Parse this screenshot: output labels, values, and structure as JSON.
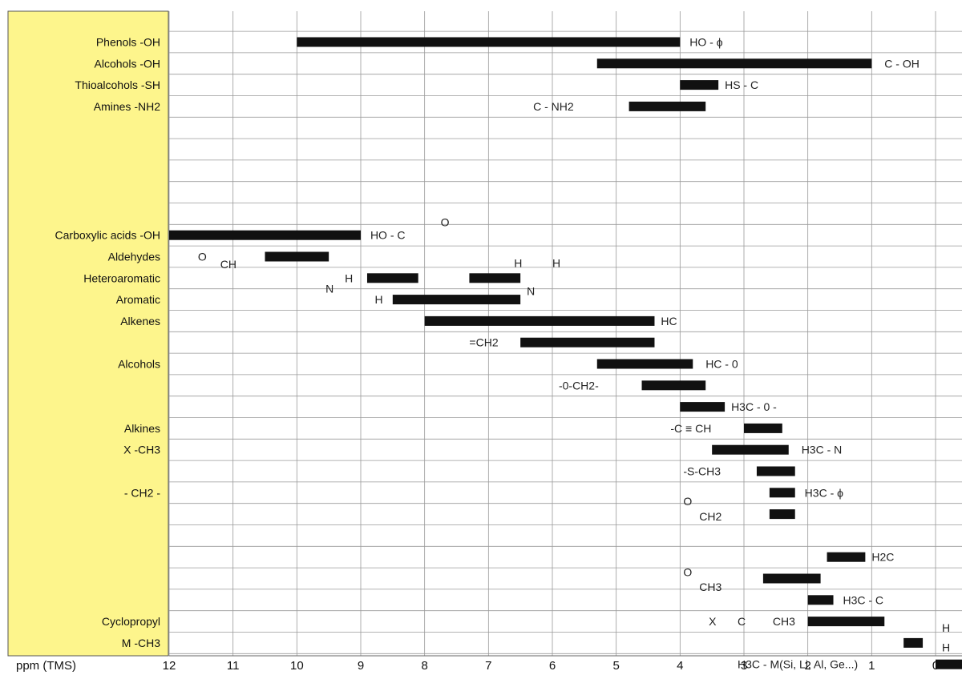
{
  "chart_data": {
    "type": "range-bar",
    "xlabel": "ppm (TMS)",
    "x_reversed": true,
    "xlim": [
      12,
      0
    ],
    "xticks": [
      12,
      11,
      10,
      9,
      8,
      7,
      6,
      5,
      4,
      3,
      2,
      1,
      0
    ],
    "grid": true,
    "colors": {
      "panel": "#fdf58c",
      "bar": "#111111",
      "grid": "#9a9a9a"
    },
    "labels": [
      {
        "row": 0,
        "text": "Phenols -OH"
      },
      {
        "row": 1,
        "text": "Alcohols -OH"
      },
      {
        "row": 2,
        "text": "Thioalcohols -SH"
      },
      {
        "row": 3,
        "text": "Amines -NH2"
      },
      {
        "row": 9,
        "text": "Carboxylic acids -OH"
      },
      {
        "row": 10,
        "text": "Aldehydes"
      },
      {
        "row": 11,
        "text": "Heteroaromatic"
      },
      {
        "row": 12,
        "text": "Aromatic"
      },
      {
        "row": 13,
        "text": "Alkenes"
      },
      {
        "row": 15,
        "text": "Alcohols"
      },
      {
        "row": 18,
        "text": "Alkines"
      },
      {
        "row": 19,
        "text": "X -CH3"
      },
      {
        "row": 21,
        "text": "- CH2 -"
      },
      {
        "row": 27,
        "text": "Cyclopropyl"
      },
      {
        "row": 28,
        "text": "M -CH3"
      }
    ],
    "bars": [
      {
        "row": 0,
        "from": 10.0,
        "to": 4.0
      },
      {
        "row": 1,
        "from": 5.3,
        "to": 1.0
      },
      {
        "row": 2,
        "from": 4.0,
        "to": 3.4
      },
      {
        "row": 3,
        "from": 4.8,
        "to": 3.6
      },
      {
        "row": 9,
        "from": 12.0,
        "to": 9.0
      },
      {
        "row": 10,
        "from": 10.5,
        "to": 9.5
      },
      {
        "row": 11,
        "from": 8.9,
        "to": 8.1
      },
      {
        "row": 11,
        "from": 7.3,
        "to": 6.5
      },
      {
        "row": 12,
        "from": 8.5,
        "to": 6.5
      },
      {
        "row": 13,
        "from": 8.0,
        "to": 4.4
      },
      {
        "row": 14,
        "from": 6.5,
        "to": 4.4
      },
      {
        "row": 15,
        "from": 5.3,
        "to": 3.8
      },
      {
        "row": 16,
        "from": 4.6,
        "to": 3.6
      },
      {
        "row": 17,
        "from": 4.0,
        "to": 3.3
      },
      {
        "row": 18,
        "from": 3.0,
        "to": 2.4
      },
      {
        "row": 19,
        "from": 3.5,
        "to": 2.3
      },
      {
        "row": 20,
        "from": 2.8,
        "to": 2.2
      },
      {
        "row": 21,
        "from": 2.6,
        "to": 2.2
      },
      {
        "row": 22,
        "from": 2.6,
        "to": 2.2
      },
      {
        "row": 24,
        "from": 1.7,
        "to": 1.1
      },
      {
        "row": 25,
        "from": 2.7,
        "to": 1.8
      },
      {
        "row": 26,
        "from": 2.0,
        "to": 1.6
      },
      {
        "row": 27,
        "from": 2.0,
        "to": 0.8
      },
      {
        "row": 28,
        "from": 0.5,
        "to": 0.2
      },
      {
        "row": 29,
        "from": 0.0,
        "to": -0.5
      }
    ],
    "annotations": [
      {
        "row": 0,
        "x": 3.85,
        "text": "HO - ϕ"
      },
      {
        "row": 1,
        "x": 0.8,
        "text": "C - OH"
      },
      {
        "row": 2,
        "x": 3.3,
        "text": "HS - C"
      },
      {
        "row": 3,
        "x": 6.3,
        "text": "C - NH2"
      },
      {
        "row": 9,
        "x": 8.85,
        "text": "HO - C"
      },
      {
        "row": 8.4,
        "x": 7.75,
        "text": "O"
      },
      {
        "row": 10,
        "x": 11.55,
        "text": "O"
      },
      {
        "row": 10.35,
        "x": 11.2,
        "text": "CH"
      },
      {
        "row": 10.3,
        "x": 6.6,
        "text": "H"
      },
      {
        "row": 10.3,
        "x": 6.0,
        "text": "H"
      },
      {
        "row": 11,
        "x": 9.25,
        "text": "H"
      },
      {
        "row": 11.5,
        "x": 9.55,
        "text": "N"
      },
      {
        "row": 11.6,
        "x": 6.4,
        "text": "N"
      },
      {
        "row": 12,
        "x": 8.78,
        "text": "H"
      },
      {
        "row": 13,
        "x": 4.3,
        "text": "HC"
      },
      {
        "row": 14,
        "x": 7.3,
        "text": "=CH2"
      },
      {
        "row": 15,
        "x": 3.6,
        "text": "HC - 0"
      },
      {
        "row": 16,
        "x": 5.9,
        "text": "-0-CH2-"
      },
      {
        "row": 17,
        "x": 3.2,
        "text": "H3C - 0 -"
      },
      {
        "row": 18,
        "x": 4.15,
        "text": "-C ≡ CH"
      },
      {
        "row": 19,
        "x": 2.1,
        "text": "H3C - N"
      },
      {
        "row": 20,
        "x": 3.95,
        "text": "-S-CH3"
      },
      {
        "row": 21,
        "x": 2.05,
        "text": "H3C - ϕ"
      },
      {
        "row": 21.4,
        "x": 3.95,
        "text": "O"
      },
      {
        "row": 22.1,
        "x": 3.7,
        "text": "CH2"
      },
      {
        "row": 24,
        "x": 1.0,
        "text": "H2C"
      },
      {
        "row": 24.7,
        "x": 3.95,
        "text": "O"
      },
      {
        "row": 25.4,
        "x": 3.7,
        "text": "CH3"
      },
      {
        "row": 26,
        "x": 1.45,
        "text": "H3C - C"
      },
      {
        "row": 27,
        "x": 3.55,
        "text": "X"
      },
      {
        "row": 27,
        "x": 3.1,
        "text": "C"
      },
      {
        "row": 27,
        "x": 2.55,
        "text": "CH3"
      },
      {
        "row": 27.3,
        "x": -0.1,
        "text": "H"
      },
      {
        "row": 28.2,
        "x": -0.1,
        "text": "H"
      },
      {
        "row": 29,
        "x": 3.1,
        "text": "H3C - M(Si, Li, Al, Ge...)"
      }
    ]
  }
}
